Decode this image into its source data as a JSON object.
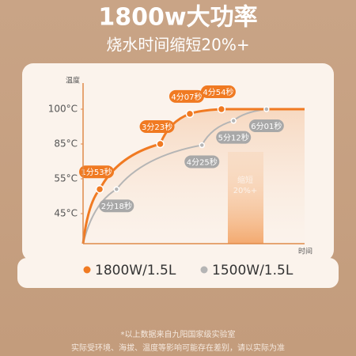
{
  "chart_data": {
    "type": "line",
    "title": "1800w大功率",
    "subtitle": "烧水时间缩短20%+",
    "ylabel": "温度",
    "xlabel": "时间",
    "yticks": [
      {
        "value": 45,
        "label": "45°C"
      },
      {
        "value": 55,
        "label": "55°C"
      },
      {
        "value": 85,
        "label": "85°C"
      },
      {
        "value": 100,
        "label": "100°C"
      }
    ],
    "series": [
      {
        "name": "1800W/1.5L",
        "color": "#f07a22",
        "x": [
          "1分53秒",
          "3分23秒",
          "4分07秒",
          "4分54秒"
        ],
        "values": [
          52,
          85,
          98,
          100
        ]
      },
      {
        "name": "1500W/1.5L",
        "color": "#b5b5b5",
        "x": [
          "2分18秒",
          "4分25秒",
          "5分12秒",
          "6分01秒"
        ],
        "values": [
          52,
          84,
          95,
          100
        ]
      }
    ],
    "annotation": "缩短",
    "annotation_value": "20%+",
    "notes": [
      "*以上数据来自九阳国家级实验室",
      "实际受环境、海拔、温度等影响可能存在差别，请以实际为准"
    ]
  }
}
